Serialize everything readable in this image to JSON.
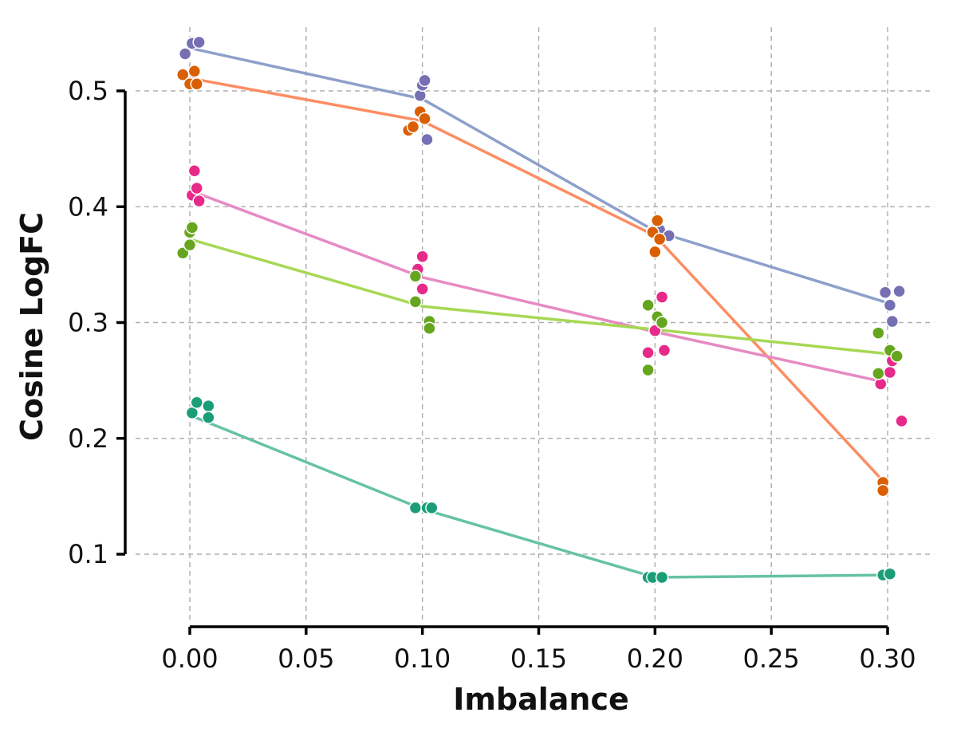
{
  "chart_data": {
    "type": "line",
    "title": "",
    "xlabel": "Imbalance",
    "ylabel": "Cosine LogFC",
    "xlim": [
      -0.015,
      0.32
    ],
    "ylim": [
      0.04,
      0.555
    ],
    "x_ticks": [
      0.0,
      0.05,
      0.1,
      0.15,
      0.2,
      0.25,
      0.3
    ],
    "x_tick_labels": [
      "0.00",
      "0.05",
      "0.10",
      "0.15",
      "0.20",
      "0.25",
      "0.30"
    ],
    "y_ticks": [
      0.1,
      0.2,
      0.3,
      0.4,
      0.5
    ],
    "y_tick_labels": [
      "0.1",
      "0.2",
      "0.3",
      "0.4",
      "0.5"
    ],
    "grid": true,
    "legend": "none",
    "series": [
      {
        "line_color": "#8DA0CB",
        "point_color": "#7570B3",
        "x": [
          0.0,
          0.1,
          0.2,
          0.3
        ],
        "y": [
          0.537,
          0.493,
          0.379,
          0.317
        ],
        "points": [
          [
            -0.002,
            0.532
          ],
          [
            0.001,
            0.541
          ],
          [
            0.004,
            0.542
          ],
          [
            0.099,
            0.496
          ],
          [
            0.1,
            0.505
          ],
          [
            0.101,
            0.509
          ],
          [
            0.102,
            0.458
          ],
          [
            0.199,
            0.379
          ],
          [
            0.201,
            0.384
          ],
          [
            0.202,
            0.38
          ],
          [
            0.206,
            0.375
          ],
          [
            0.299,
            0.326
          ],
          [
            0.301,
            0.315
          ],
          [
            0.302,
            0.301
          ],
          [
            0.305,
            0.327
          ]
        ]
      },
      {
        "line_color": "#FC8D62",
        "point_color": "#D95F02",
        "x": [
          0.0,
          0.1,
          0.2,
          0.3
        ],
        "y": [
          0.511,
          0.474,
          0.375,
          0.159
        ],
        "points": [
          [
            -0.003,
            0.514
          ],
          [
            0.0,
            0.506
          ],
          [
            0.002,
            0.517
          ],
          [
            0.003,
            0.506
          ],
          [
            0.094,
            0.466
          ],
          [
            0.096,
            0.469
          ],
          [
            0.099,
            0.482
          ],
          [
            0.101,
            0.476
          ],
          [
            0.199,
            0.378
          ],
          [
            0.2,
            0.361
          ],
          [
            0.201,
            0.388
          ],
          [
            0.202,
            0.372
          ],
          [
            0.298,
            0.158
          ],
          [
            0.298,
            0.162
          ],
          [
            0.298,
            0.155
          ]
        ]
      },
      {
        "line_color": "#E78AC3",
        "point_color": "#E7298A",
        "x": [
          0.0,
          0.1,
          0.2,
          0.3
        ],
        "y": [
          0.414,
          0.339,
          0.292,
          0.248
        ],
        "points": [
          [
            0.001,
            0.41
          ],
          [
            0.002,
            0.431
          ],
          [
            0.003,
            0.416
          ],
          [
            0.004,
            0.405
          ],
          [
            0.098,
            0.346
          ],
          [
            0.1,
            0.357
          ],
          [
            0.1,
            0.329
          ],
          [
            0.197,
            0.274
          ],
          [
            0.2,
            0.293
          ],
          [
            0.203,
            0.322
          ],
          [
            0.204,
            0.276
          ],
          [
            0.297,
            0.247
          ],
          [
            0.301,
            0.257
          ],
          [
            0.302,
            0.267
          ],
          [
            0.306,
            0.215
          ]
        ]
      },
      {
        "line_color": "#A6D854",
        "point_color": "#66A61E",
        "x": [
          0.0,
          0.1,
          0.2,
          0.3
        ],
        "y": [
          0.372,
          0.314,
          0.294,
          0.273
        ],
        "points": [
          [
            -0.003,
            0.36
          ],
          [
            0.0,
            0.367
          ],
          [
            0.0,
            0.378
          ],
          [
            0.001,
            0.382
          ],
          [
            0.097,
            0.34
          ],
          [
            0.097,
            0.318
          ],
          [
            0.103,
            0.301
          ],
          [
            0.103,
            0.295
          ],
          [
            0.197,
            0.315
          ],
          [
            0.197,
            0.259
          ],
          [
            0.201,
            0.305
          ],
          [
            0.203,
            0.3
          ],
          [
            0.296,
            0.256
          ],
          [
            0.296,
            0.291
          ],
          [
            0.301,
            0.276
          ],
          [
            0.304,
            0.271
          ]
        ]
      },
      {
        "line_color": "#66C2A5",
        "point_color": "#1B9E77",
        "x": [
          0.0,
          0.1,
          0.2,
          0.3
        ],
        "y": [
          0.22,
          0.139,
          0.08,
          0.082
        ],
        "points": [
          [
            0.001,
            0.222
          ],
          [
            0.003,
            0.231
          ],
          [
            0.008,
            0.228
          ],
          [
            0.008,
            0.218
          ],
          [
            0.097,
            0.14
          ],
          [
            0.102,
            0.14
          ],
          [
            0.104,
            0.14
          ],
          [
            0.197,
            0.08
          ],
          [
            0.199,
            0.08
          ],
          [
            0.203,
            0.08
          ],
          [
            0.298,
            0.082
          ],
          [
            0.301,
            0.083
          ]
        ]
      }
    ]
  }
}
